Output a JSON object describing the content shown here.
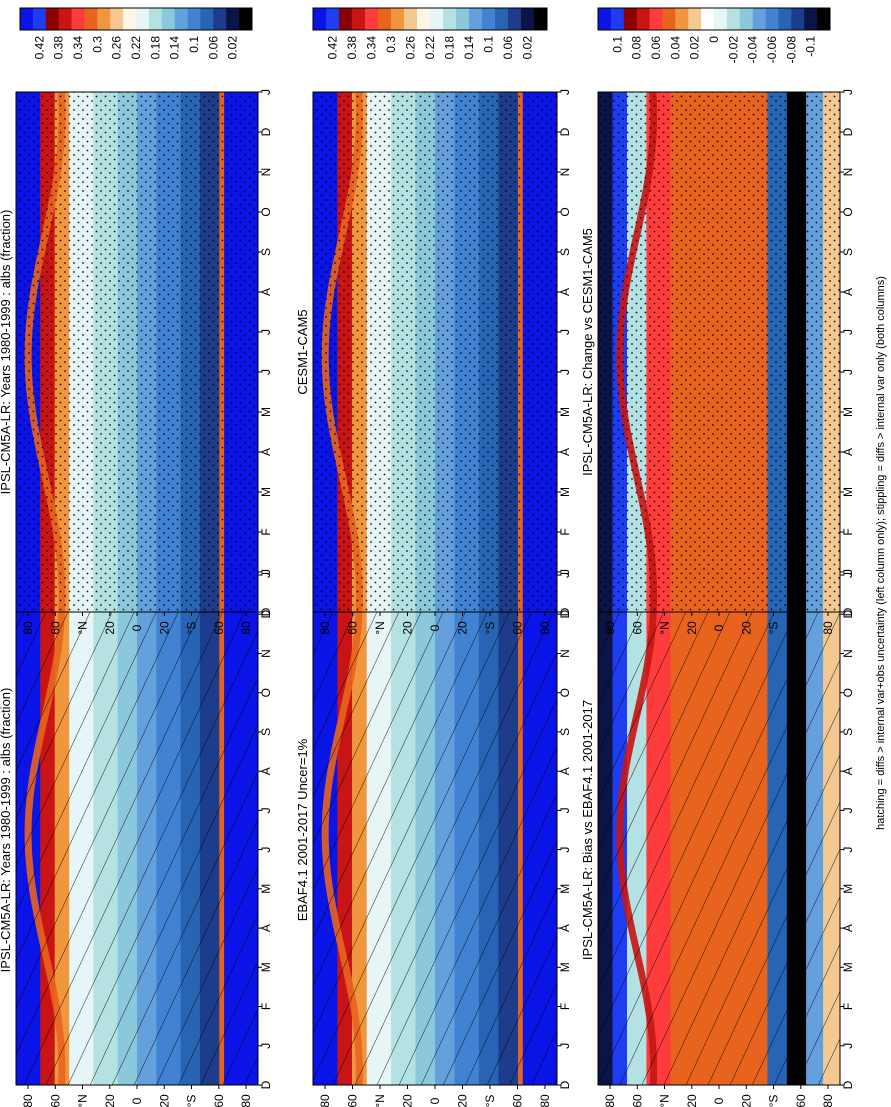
{
  "figure": {
    "footnote": "hatching = diffs > internal var+obs uncertainty (left column only); stippling = diffs > internal var only (both columns)"
  },
  "chart_data": [
    {
      "type": "heatmap",
      "id": "p1",
      "title": "IPSL-CM5A-LR: Years 1980-1999 : albs (fraction)",
      "x": [
        "D",
        "J",
        "F",
        "M",
        "A",
        "M",
        "J",
        "J",
        "A",
        "S",
        "O",
        "N",
        "D",
        "J"
      ],
      "y_ticks": [
        "80",
        "60",
        "°N",
        "20",
        "0",
        "20",
        "°S",
        "60",
        "80"
      ],
      "colorbar": [
        "0.42",
        "0.38",
        "0.34",
        "0.3",
        "0.26",
        "0.22",
        "0.18",
        "0.14",
        "0.1",
        "0.06",
        "0.02"
      ],
      "overlay": "hatching"
    },
    {
      "type": "heatmap",
      "id": "p2",
      "title": "IPSL-CM5A-LR: Years 1980-1999 : albs (fraction)",
      "x": [
        "D",
        "J",
        "F",
        "M",
        "A",
        "M",
        "J",
        "J",
        "A",
        "S",
        "O",
        "N",
        "D",
        "J"
      ],
      "y_ticks": [
        "80",
        "60",
        "°N",
        "20",
        "0",
        "20",
        "°S",
        "60",
        "80"
      ],
      "colorbar": [
        "0.42",
        "0.38",
        "0.34",
        "0.3",
        "0.26",
        "0.22",
        "0.18",
        "0.14",
        "0.1",
        "0.06",
        "0.02"
      ],
      "overlay": "stippling"
    },
    {
      "type": "heatmap",
      "id": "p3",
      "title": "EBAF4.1 2001-2017 Uncer=1%",
      "x": [
        "D",
        "J",
        "F",
        "M",
        "A",
        "M",
        "J",
        "J",
        "A",
        "S",
        "O",
        "N",
        "D",
        "J"
      ],
      "y_ticks": [
        "80",
        "60",
        "°N",
        "20",
        "0",
        "20",
        "°S",
        "60",
        "80"
      ],
      "colorbar": [
        "0.42",
        "0.38",
        "0.34",
        "0.3",
        "0.26",
        "0.22",
        "0.18",
        "0.14",
        "0.1",
        "0.06",
        "0.02"
      ],
      "overlay": "hatching"
    },
    {
      "type": "heatmap",
      "id": "p4",
      "title": "CESM1-CAM5",
      "x": [
        "D",
        "J",
        "F",
        "M",
        "A",
        "M",
        "J",
        "J",
        "A",
        "S",
        "O",
        "N",
        "D",
        "J"
      ],
      "y_ticks": [
        "80",
        "60",
        "°N",
        "20",
        "0",
        "20",
        "°S",
        "60",
        "80"
      ],
      "colorbar": [
        "0.42",
        "0.38",
        "0.34",
        "0.3",
        "0.26",
        "0.22",
        "0.18",
        "0.14",
        "0.1",
        "0.06",
        "0.02"
      ],
      "overlay": "stippling"
    },
    {
      "type": "heatmap",
      "id": "p5",
      "title": "IPSL-CM5A-LR: Bias vs EBAF4.1 2001-2017",
      "x": [
        "D",
        "J",
        "F",
        "M",
        "A",
        "M",
        "J",
        "J",
        "A",
        "S",
        "O",
        "N",
        "D",
        "J"
      ],
      "y_ticks": [
        "80",
        "60",
        "°N",
        "20",
        "0",
        "20",
        "°S",
        "60",
        "80"
      ],
      "colorbar": [
        "0.1",
        "0.08",
        "0.06",
        "0.04",
        "0.02",
        "0",
        "-0.02",
        "-0.04",
        "-0.06",
        "-0.08",
        "-0.1"
      ],
      "overlay": "hatching"
    },
    {
      "type": "heatmap",
      "id": "p6",
      "title": "IPSL-CM5A-LR: Change vs CESM1-CAM5",
      "x": [
        "D",
        "J",
        "F",
        "M",
        "A",
        "M",
        "J",
        "J",
        "A",
        "S",
        "O",
        "N",
        "D",
        "J"
      ],
      "y_ticks": [
        "80",
        "60",
        "°N",
        "20",
        "0",
        "20",
        "°S",
        "60",
        "80"
      ],
      "colorbar": [
        "0.1",
        "0.08",
        "0.06",
        "0.04",
        "0.02",
        "0",
        "-0.02",
        "-0.04",
        "-0.06",
        "-0.08",
        "-0.1"
      ],
      "overlay": "stippling"
    }
  ],
  "palettes": {
    "albedo": [
      "#0a14e6",
      "#1e3cf0",
      "#8b0000",
      "#c81414",
      "#ff3c3c",
      "#e8641e",
      "#f0963c",
      "#f5c891",
      "#fff5e6",
      "#e6f5f5",
      "#b4e1e1",
      "#8cc8dc",
      "#64a0dc",
      "#4182d2",
      "#2864b4",
      "#1e3c8c",
      "#0a1446",
      "#000000"
    ],
    "diff": [
      "#0a14e6",
      "#1e3cf0",
      "#8b0000",
      "#c81414",
      "#ff3c3c",
      "#e8641e",
      "#f0963c",
      "#f5c891",
      "#ffffff",
      "#e6f5f5",
      "#b4e1e1",
      "#8cc8dc",
      "#64a0dc",
      "#4182d2",
      "#2864b4",
      "#1e3c8c",
      "#0a1446",
      "#000000"
    ]
  }
}
